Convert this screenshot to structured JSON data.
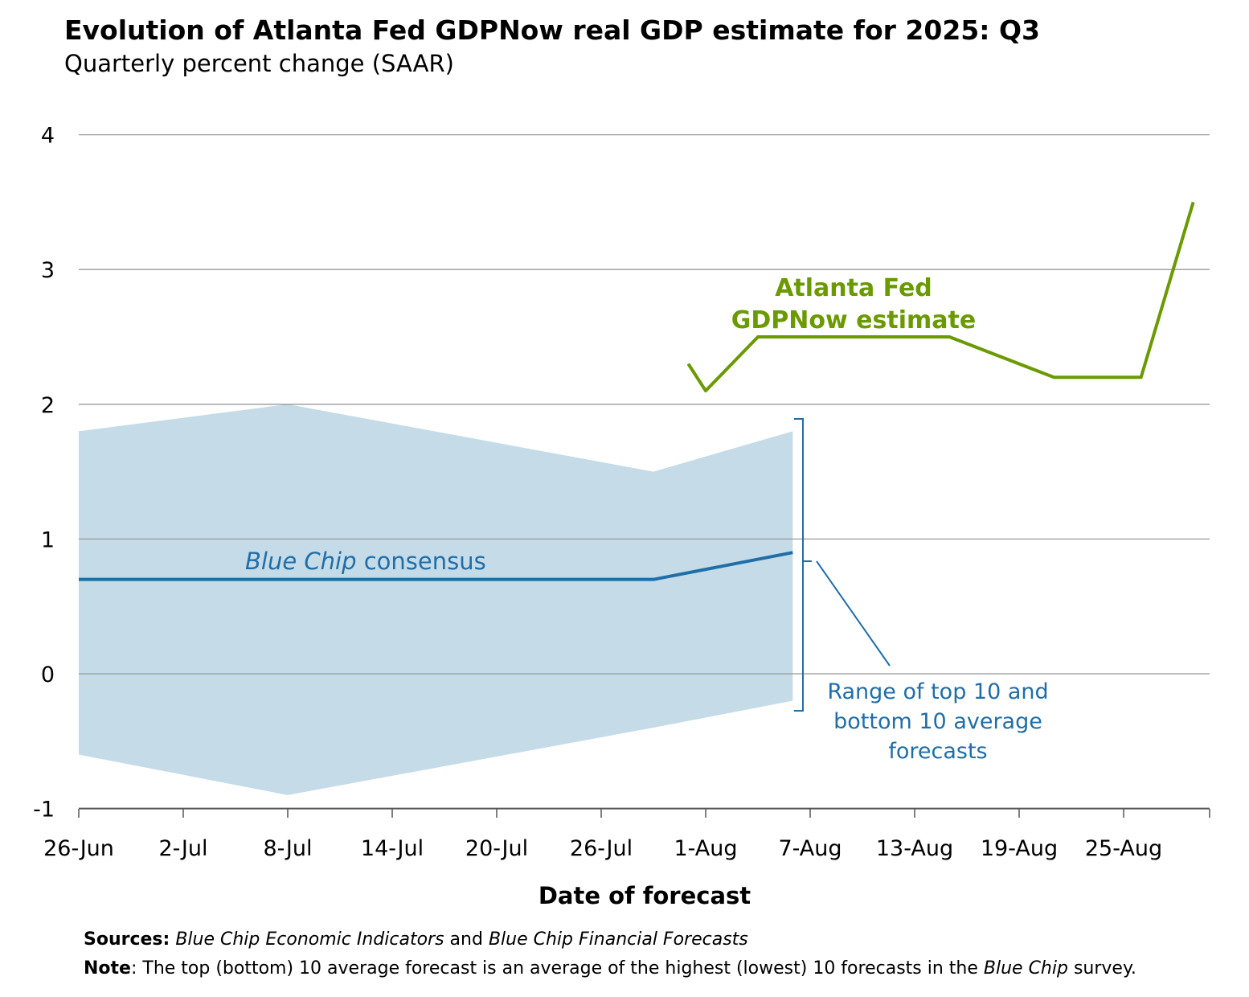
{
  "chart_data": {
    "type": "line",
    "title": "Evolution of Atlanta Fed GDPNow real GDP estimate for 2025: Q3",
    "subtitle": "Quarterly percent change (SAAR)",
    "xlabel": "Date of forecast",
    "ylabel": "",
    "ylim": [
      -1,
      4
    ],
    "yticks": [
      "4",
      "3",
      "2",
      "1",
      "0",
      "-1"
    ],
    "ytick_values": [
      4,
      3,
      2,
      1,
      0,
      -1
    ],
    "x_unit": "days since 26-Jun",
    "xlim": [
      0,
      65
    ],
    "xticks": [
      {
        "day": 0,
        "label": "26-Jun"
      },
      {
        "day": 6,
        "label": "2-Jul"
      },
      {
        "day": 12,
        "label": "8-Jul"
      },
      {
        "day": 18,
        "label": "14-Jul"
      },
      {
        "day": 24,
        "label": "20-Jul"
      },
      {
        "day": 30,
        "label": "26-Jul"
      },
      {
        "day": 36,
        "label": "1-Aug"
      },
      {
        "day": 42,
        "label": "7-Aug"
      },
      {
        "day": 48,
        "label": "13-Aug"
      },
      {
        "day": 54,
        "label": "19-Aug"
      },
      {
        "day": 60,
        "label": "25-Aug"
      }
    ],
    "grid": true,
    "series": [
      {
        "name": "Atlanta Fed GDPNow estimate",
        "color": "#6a9a00",
        "x": [
          35,
          36,
          39,
          50,
          56,
          61,
          64
        ],
        "dates": [
          "31-Jul",
          "1-Aug",
          "4-Aug",
          "15-Aug",
          "21-Aug",
          "26-Aug",
          "29-Aug"
        ],
        "values": [
          2.3,
          2.1,
          2.5,
          2.5,
          2.2,
          2.2,
          3.5
        ]
      },
      {
        "name": "Blue Chip consensus",
        "color": "#1f6ea8",
        "x": [
          0,
          33,
          41
        ],
        "values": [
          0.7,
          0.7,
          0.9
        ]
      }
    ],
    "band": {
      "name": "Range of top 10 and bottom 10 average forecasts",
      "color": "#c5dbe8",
      "x": [
        0,
        12,
        33,
        41
      ],
      "upper": [
        1.8,
        2.0,
        1.5,
        1.8
      ],
      "lower": [
        -0.6,
        -0.9,
        -0.4,
        -0.2
      ]
    },
    "annotations": {
      "gdpnow": [
        "Atlanta Fed",
        "GDPNow estimate"
      ],
      "bluechip_italic": "Blue Chip",
      "bluechip_rest": " consensus",
      "range": [
        "Range of top 10 and",
        "bottom 10 average",
        "forecasts"
      ]
    }
  },
  "footer": {
    "sources_label": "Sources:",
    "sources_a": "Blue Chip Economic Indicators",
    "sources_and": " and ",
    "sources_b": "Blue Chip Financial Forecasts",
    "note_label": "Note",
    "note_text": ": The top (bottom) 10 average forecast is an average of the highest (lowest) 10 forecasts in the ",
    "note_italic": "Blue Chip",
    "note_end": " survey."
  }
}
